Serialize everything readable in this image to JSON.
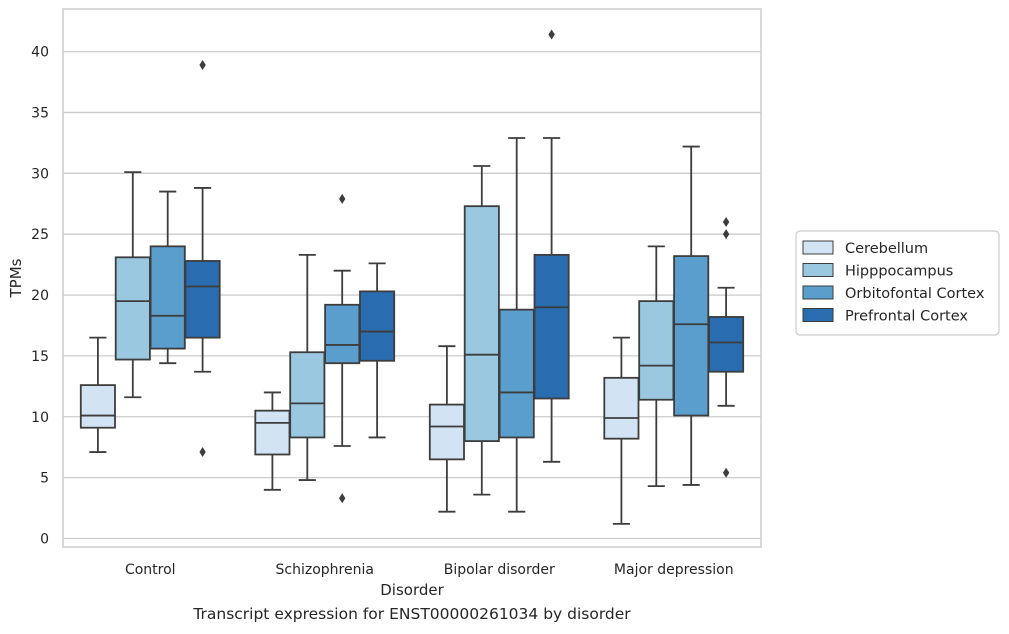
{
  "caption": "Transcript expression for ENST00000261034 by disorder",
  "chart_data": {
    "type": "boxplot",
    "xlabel": "Disorder",
    "ylabel": "TPMs",
    "ylim": [
      -0.7,
      43.5
    ],
    "yticks": [
      0,
      5,
      10,
      15,
      20,
      25,
      30,
      35,
      40
    ],
    "categories": [
      "Control",
      "Schizophrenia",
      "Bipolar disorder",
      "Major depression"
    ],
    "grid": "horizontal",
    "legend_position": "right",
    "series": [
      {
        "name": "Cerebellum",
        "color": "#d2e3f3",
        "boxes": [
          {
            "whislo": 7.1,
            "q1": 9.1,
            "med": 10.1,
            "q3": 12.6,
            "whishi": 16.5,
            "fliers": []
          },
          {
            "whislo": 4.0,
            "q1": 6.9,
            "med": 9.5,
            "q3": 10.5,
            "whishi": 12.0,
            "fliers": []
          },
          {
            "whislo": 2.2,
            "q1": 6.5,
            "med": 9.2,
            "q3": 11.0,
            "whishi": 15.8,
            "fliers": []
          },
          {
            "whislo": 1.2,
            "q1": 8.2,
            "med": 9.9,
            "q3": 13.2,
            "whishi": 16.5,
            "fliers": []
          }
        ]
      },
      {
        "name": "Hipppocampus",
        "color": "#9ac8e0",
        "boxes": [
          {
            "whislo": 11.6,
            "q1": 14.7,
            "med": 19.5,
            "q3": 23.1,
            "whishi": 30.1,
            "fliers": []
          },
          {
            "whislo": 4.8,
            "q1": 8.3,
            "med": 11.1,
            "q3": 15.3,
            "whishi": 23.3,
            "fliers": []
          },
          {
            "whislo": 3.6,
            "q1": 8.0,
            "med": 15.1,
            "q3": 27.3,
            "whishi": 30.6,
            "fliers": []
          },
          {
            "whislo": 4.3,
            "q1": 11.4,
            "med": 14.2,
            "q3": 19.5,
            "whishi": 24.0,
            "fliers": []
          }
        ]
      },
      {
        "name": "Orbitofontal Cortex",
        "color": "#5a9ecd",
        "boxes": [
          {
            "whislo": 14.4,
            "q1": 15.6,
            "med": 18.3,
            "q3": 24.0,
            "whishi": 28.5,
            "fliers": []
          },
          {
            "whislo": 7.6,
            "q1": 14.4,
            "med": 15.9,
            "q3": 19.2,
            "whishi": 22.0,
            "fliers": [
              27.9,
              3.3
            ]
          },
          {
            "whislo": 2.2,
            "q1": 8.3,
            "med": 12.0,
            "q3": 18.8,
            "whishi": 32.9,
            "fliers": []
          },
          {
            "whislo": 4.4,
            "q1": 10.1,
            "med": 17.6,
            "q3": 23.2,
            "whishi": 32.2,
            "fliers": []
          }
        ]
      },
      {
        "name": "Prefrontal Cortex",
        "color": "#2a6cb0",
        "boxes": [
          {
            "whislo": 13.7,
            "q1": 16.5,
            "med": 20.7,
            "q3": 22.8,
            "whishi": 28.8,
            "fliers": [
              38.9,
              7.1
            ]
          },
          {
            "whislo": 8.3,
            "q1": 14.6,
            "med": 17.0,
            "q3": 20.3,
            "whishi": 22.6,
            "fliers": []
          },
          {
            "whislo": 6.3,
            "q1": 11.5,
            "med": 19.0,
            "q3": 23.3,
            "whishi": 32.9,
            "fliers": [
              41.4
            ]
          },
          {
            "whislo": 10.9,
            "q1": 13.7,
            "med": 16.1,
            "q3": 18.2,
            "whishi": 20.6,
            "fliers": [
              26.0,
              25.0,
              5.4
            ]
          }
        ]
      }
    ]
  }
}
